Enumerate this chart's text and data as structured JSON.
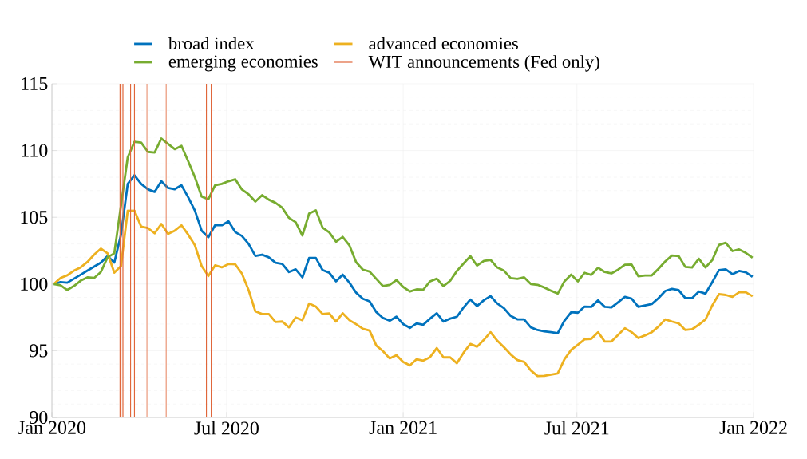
{
  "chart_data": {
    "type": "line",
    "x": [
      "2020-01-03",
      "2020-01-10",
      "2020-01-17",
      "2020-01-24",
      "2020-01-31",
      "2020-02-07",
      "2020-02-14",
      "2020-02-21",
      "2020-02-28",
      "2020-03-06",
      "2020-03-13",
      "2020-03-20",
      "2020-03-27",
      "2020-04-03",
      "2020-04-10",
      "2020-04-17",
      "2020-04-24",
      "2020-05-01",
      "2020-05-08",
      "2020-05-15",
      "2020-05-22",
      "2020-05-29",
      "2020-06-05",
      "2020-06-12",
      "2020-06-19",
      "2020-06-26",
      "2020-07-03",
      "2020-07-10",
      "2020-07-17",
      "2020-07-24",
      "2020-07-31",
      "2020-08-07",
      "2020-08-14",
      "2020-08-21",
      "2020-08-28",
      "2020-09-04",
      "2020-09-11",
      "2020-09-18",
      "2020-09-25",
      "2020-10-02",
      "2020-10-09",
      "2020-10-16",
      "2020-10-23",
      "2020-10-30",
      "2020-11-06",
      "2020-11-13",
      "2020-11-20",
      "2020-11-27",
      "2020-12-04",
      "2020-12-11",
      "2020-12-18",
      "2020-12-25",
      "2021-01-01",
      "2021-01-08",
      "2021-01-15",
      "2021-01-22",
      "2021-01-29",
      "2021-02-05",
      "2021-02-12",
      "2021-02-19",
      "2021-02-26",
      "2021-03-05",
      "2021-03-12",
      "2021-03-19",
      "2021-03-26",
      "2021-04-02",
      "2021-04-09",
      "2021-04-16",
      "2021-04-23",
      "2021-04-30",
      "2021-05-07",
      "2021-05-14",
      "2021-05-21",
      "2021-05-28",
      "2021-06-04",
      "2021-06-11",
      "2021-06-18",
      "2021-06-25",
      "2021-07-02",
      "2021-07-09",
      "2021-07-16",
      "2021-07-23",
      "2021-07-30",
      "2021-08-06",
      "2021-08-13",
      "2021-08-20",
      "2021-08-27",
      "2021-09-03",
      "2021-09-10",
      "2021-09-17",
      "2021-09-24",
      "2021-10-01",
      "2021-10-08",
      "2021-10-15",
      "2021-10-22",
      "2021-10-29",
      "2021-11-05",
      "2021-11-12",
      "2021-11-19",
      "2021-11-26",
      "2021-12-03",
      "2021-12-10",
      "2021-12-17",
      "2021-12-24",
      "2021-12-31"
    ],
    "series": [
      {
        "name": "broad index",
        "color": "#0072bd",
        "values": [
          100,
          100.14,
          100.1,
          100.4,
          100.7,
          101.0,
          101.3,
          101.6,
          102.1,
          101.6,
          103.7,
          107.5,
          108.15,
          107.5,
          107.1,
          106.9,
          107.7,
          107.2,
          107.1,
          107.4,
          106.5,
          105.5,
          104.0,
          103.5,
          104.4,
          104.4,
          104.7,
          103.9,
          103.6,
          103.0,
          102.1,
          102.2,
          102.0,
          101.6,
          101.5,
          100.9,
          101.1,
          100.5,
          101.95,
          101.95,
          101.05,
          100.85,
          100.2,
          100.7,
          100.1,
          99.35,
          98.9,
          98.7,
          97.9,
          97.45,
          97.25,
          97.55,
          97.0,
          96.71,
          97.05,
          96.95,
          97.41,
          97.81,
          97.19,
          97.41,
          97.55,
          98.25,
          98.84,
          98.35,
          98.78,
          99.1,
          98.54,
          98.19,
          97.61,
          97.35,
          97.35,
          96.75,
          96.55,
          96.45,
          96.39,
          96.31,
          97.25,
          97.89,
          97.85,
          98.31,
          98.29,
          98.78,
          98.29,
          98.25,
          98.64,
          99.04,
          98.9,
          98.29,
          98.39,
          98.5,
          98.94,
          99.48,
          99.64,
          99.54,
          98.94,
          98.94,
          99.44,
          99.28,
          100.14,
          101.04,
          101.1,
          100.74,
          100.98,
          100.88,
          100.54
        ]
      },
      {
        "name": "advanced economies",
        "color": "#edb120",
        "values": [
          100,
          100.45,
          100.65,
          101.0,
          101.25,
          101.65,
          102.2,
          102.65,
          102.3,
          100.85,
          101.35,
          105.5,
          105.5,
          104.3,
          104.2,
          103.8,
          104.5,
          103.75,
          104.0,
          104.4,
          103.7,
          102.9,
          101.35,
          100.6,
          101.4,
          101.25,
          101.5,
          101.48,
          100.78,
          99.54,
          97.95,
          97.75,
          97.75,
          97.15,
          97.19,
          96.75,
          97.49,
          97.29,
          98.54,
          98.31,
          97.75,
          97.79,
          97.19,
          97.81,
          97.29,
          96.99,
          96.65,
          96.51,
          95.39,
          94.96,
          94.42,
          94.66,
          94.16,
          93.9,
          94.36,
          94.26,
          94.52,
          95.2,
          94.5,
          94.5,
          94.06,
          94.86,
          95.51,
          95.3,
          95.81,
          96.39,
          95.75,
          95.26,
          94.72,
          94.3,
          94.16,
          93.52,
          93.1,
          93.12,
          93.2,
          93.3,
          94.36,
          95.06,
          95.45,
          95.85,
          95.89,
          96.39,
          95.69,
          95.69,
          96.19,
          96.69,
          96.39,
          95.95,
          96.15,
          96.39,
          96.81,
          97.35,
          97.19,
          97.05,
          96.55,
          96.61,
          96.95,
          97.35,
          98.39,
          99.24,
          99.18,
          99.04,
          99.38,
          99.38,
          99.08
        ]
      },
      {
        "name": "emerging economies",
        "color": "#77ac30",
        "values": [
          100,
          99.9,
          99.55,
          99.85,
          100.25,
          100.5,
          100.45,
          100.9,
          102.0,
          102.3,
          105.9,
          109.5,
          110.65,
          110.6,
          109.9,
          109.85,
          110.9,
          110.5,
          110.1,
          110.35,
          109.2,
          108.0,
          106.55,
          106.35,
          107.4,
          107.5,
          107.7,
          107.85,
          107.08,
          106.72,
          106.18,
          106.66,
          106.32,
          106.08,
          105.72,
          104.96,
          104.63,
          103.63,
          105.28,
          105.52,
          104.23,
          103.87,
          103.17,
          103.53,
          102.89,
          101.63,
          101.08,
          100.94,
          100.38,
          99.84,
          99.94,
          100.3,
          99.78,
          99.44,
          99.6,
          99.58,
          100.2,
          100.4,
          99.84,
          100.24,
          100.98,
          101.54,
          102.09,
          101.38,
          101.73,
          101.81,
          101.24,
          101.0,
          100.44,
          100.38,
          100.5,
          100.0,
          99.94,
          99.74,
          99.5,
          99.28,
          100.2,
          100.7,
          100.2,
          100.84,
          100.68,
          101.22,
          100.9,
          100.8,
          101.08,
          101.44,
          101.46,
          100.58,
          100.64,
          100.64,
          101.14,
          101.69,
          102.13,
          102.09,
          101.28,
          101.24,
          101.89,
          101.24,
          101.79,
          102.93,
          103.09,
          102.47,
          102.59,
          102.33,
          101.97
        ]
      }
    ],
    "ref_lines": [
      {
        "axis": "x",
        "value": "2020-03-12",
        "label": "WIT announcements (Fed only)",
        "color": "#e0663a"
      },
      {
        "axis": "x",
        "value": "2020-03-13",
        "color": "#e0663a"
      },
      {
        "axis": "x",
        "value": "2020-03-15",
        "color": "#e0663a"
      },
      {
        "axis": "x",
        "value": "2020-03-23",
        "color": "#e0663a"
      },
      {
        "axis": "x",
        "value": "2020-03-27",
        "color": "#e0663a"
      },
      {
        "axis": "x",
        "value": "2020-04-09",
        "color": "#e0663a"
      },
      {
        "axis": "x",
        "value": "2020-04-29",
        "color": "#e0663a"
      },
      {
        "axis": "x",
        "value": "2020-06-10",
        "color": "#e0663a"
      },
      {
        "axis": "x",
        "value": "2020-06-15",
        "color": "#e0663a"
      }
    ],
    "xlim": [
      "2020-01-01",
      "2022-01-01"
    ],
    "xticks": [
      {
        "value": "2020-01-01",
        "label": "Jan 2020"
      },
      {
        "value": "2020-07-01",
        "label": "Jul 2020"
      },
      {
        "value": "2021-01-01",
        "label": "Jan 2021"
      },
      {
        "value": "2021-07-01",
        "label": "Jul 2021"
      },
      {
        "value": "2022-01-01",
        "label": "Jan 2022"
      }
    ],
    "ylim": [
      90,
      115
    ],
    "yticks": [
      90,
      95,
      100,
      105,
      110,
      115
    ],
    "grid": true,
    "legend": "top"
  }
}
